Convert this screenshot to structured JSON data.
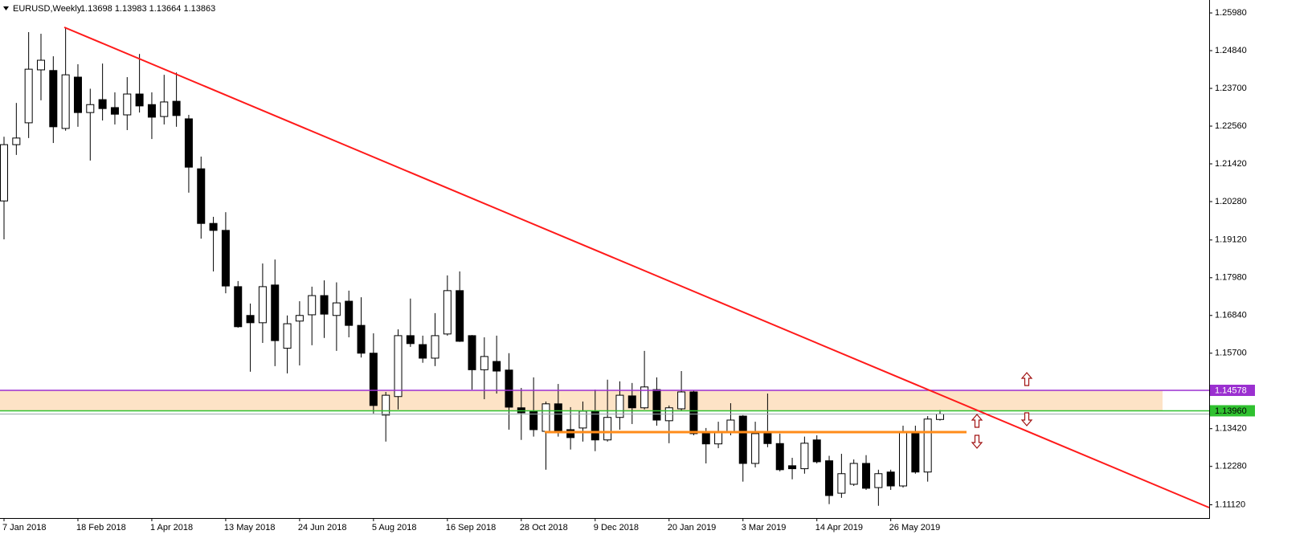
{
  "chart_data": {
    "type": "candlestick",
    "symbol": "EURUSD,Weekly",
    "quote": "1.13698 1.13983 1.13664 1.13863",
    "categories": [
      "7 Jan 2018",
      null,
      null,
      null,
      null,
      null,
      "18 Feb 2018",
      null,
      null,
      null,
      null,
      null,
      "1 Apr 2018",
      null,
      null,
      null,
      null,
      null,
      "13 May 2018",
      null,
      null,
      null,
      null,
      null,
      "24 Jun 2018",
      null,
      null,
      null,
      null,
      null,
      "5 Aug 2018",
      null,
      null,
      null,
      null,
      null,
      "16 Sep 2018",
      null,
      null,
      null,
      null,
      null,
      "28 Oct 2018",
      null,
      null,
      null,
      null,
      null,
      "9 Dec 2018",
      null,
      null,
      null,
      null,
      null,
      "20 Jan 2019",
      null,
      null,
      null,
      null,
      null,
      "3 Mar 2019",
      null,
      null,
      null,
      null,
      null,
      "14 Apr 2019",
      null,
      null,
      null,
      null,
      null,
      "26 May 2019",
      null,
      null,
      null,
      null
    ],
    "open": [
      1.203,
      1.22,
      1.2266,
      1.2426,
      1.2424,
      1.2249,
      1.2404,
      1.2297,
      1.2336,
      1.2312,
      1.229,
      1.2353,
      1.2321,
      1.2285,
      1.2331,
      1.2278,
      1.2127,
      1.1962,
      1.1941,
      1.1771,
      1.1684,
      1.1662,
      1.1776,
      1.1585,
      1.1667,
      1.1686,
      1.1744,
      1.1684,
      1.1727,
      1.1654,
      1.157,
      1.1383,
      1.1439,
      1.1623,
      1.1596,
      1.1555,
      1.1628,
      1.1759,
      1.1623,
      1.152,
      1.1545,
      1.1519,
      1.1405,
      1.1395,
      1.1334,
      1.1417,
      1.1339,
      1.1344,
      1.1395,
      1.1308,
      1.1376,
      1.1441,
      1.1405,
      1.146,
      1.1366,
      1.1402,
      1.1453,
      1.1327,
      1.1296,
      1.1332,
      1.138,
      1.1237,
      1.1327,
      1.1297,
      1.123,
      1.1221,
      1.1308,
      1.1245,
      1.1147,
      1.1174,
      1.1237,
      1.1164,
      1.1211,
      1.1169,
      1.1327,
      1.1211,
      1.13698
    ],
    "high": [
      1.2224,
      1.2326,
      1.254,
      1.2535,
      1.2467,
      1.2554,
      1.2443,
      1.2369,
      1.2445,
      1.2358,
      1.2404,
      1.2474,
      1.2358,
      1.2411,
      1.2418,
      1.229,
      1.2164,
      1.1982,
      1.1996,
      1.1788,
      1.172,
      1.1841,
      1.1853,
      1.1684,
      1.1727,
      1.1771,
      1.179,
      1.1784,
      1.1759,
      1.1739,
      1.163,
      1.1453,
      1.1642,
      1.1735,
      1.1623,
      1.1691,
      1.1805,
      1.1817,
      1.1625,
      1.1618,
      1.1623,
      1.157,
      1.1465,
      1.1497,
      1.1424,
      1.1477,
      1.1407,
      1.1424,
      1.146,
      1.149,
      1.1485,
      1.148,
      1.1577,
      1.1497,
      1.1412,
      1.1516,
      1.1458,
      1.1344,
      1.1363,
      1.1419,
      1.1383,
      1.1363,
      1.1448,
      1.1327,
      1.1254,
      1.1318,
      1.1322,
      1.126,
      1.1266,
      1.1249,
      1.1262,
      1.1218,
      1.1218,
      1.1351,
      1.1351,
      1.138,
      1.13983
    ],
    "low": [
      1.1914,
      1.2169,
      1.222,
      1.2334,
      1.2205,
      1.2242,
      1.2254,
      1.2152,
      1.2273,
      1.2261,
      1.2244,
      1.2297,
      1.2217,
      1.2261,
      1.2254,
      1.2055,
      1.1916,
      1.1817,
      1.1751,
      1.1647,
      1.1514,
      1.1601,
      1.1531,
      1.1509,
      1.1533,
      1.1594,
      1.1616,
      1.1577,
      1.1618,
      1.1557,
      1.1388,
      1.1303,
      1.14,
      1.1589,
      1.1541,
      1.1531,
      1.1623,
      1.1604,
      1.146,
      1.1431,
      1.1448,
      1.1339,
      1.1308,
      1.1318,
      1.1218,
      1.1318,
      1.1279,
      1.1303,
      1.1274,
      1.1303,
      1.1339,
      1.1356,
      1.14,
      1.1351,
      1.1298,
      1.1395,
      1.1322,
      1.1237,
      1.1283,
      1.1322,
      1.1182,
      1.1225,
      1.1286,
      1.1213,
      1.1189,
      1.1206,
      1.1237,
      1.1114,
      1.1133,
      1.1169,
      1.1157,
      1.1109,
      1.1157,
      1.1164,
      1.1206,
      1.1182,
      1.13664
    ],
    "close": [
      1.22,
      1.222,
      1.2428,
      1.2455,
      1.2254,
      1.2411,
      1.2297,
      1.2321,
      1.2309,
      1.2292,
      1.2353,
      1.2317,
      1.2283,
      1.2329,
      1.2288,
      1.2132,
      1.1962,
      1.1941,
      1.1773,
      1.165,
      1.1662,
      1.1771,
      1.1608,
      1.1659,
      1.1684,
      1.1744,
      1.1688,
      1.1722,
      1.1654,
      1.157,
      1.1412,
      1.1443,
      1.1623,
      1.1599,
      1.1555,
      1.1623,
      1.1759,
      1.1606,
      1.152,
      1.156,
      1.1516,
      1.1407,
      1.139,
      1.1339,
      1.1417,
      1.1334,
      1.1315,
      1.1395,
      1.1308,
      1.1376,
      1.1443,
      1.1405,
      1.1468,
      1.1368,
      1.1405,
      1.1453,
      1.1327,
      1.1296,
      1.1332,
      1.1368,
      1.1237,
      1.1327,
      1.1297,
      1.1218,
      1.1221,
      1.1298,
      1.1242,
      1.114,
      1.1206,
      1.1237,
      1.1162,
      1.1206,
      1.1169,
      1.1332,
      1.1211,
      1.1371,
      1.13863
    ],
    "up_color": "#ffffff",
    "down_color": "#000000",
    "ylim": [
      1.1072,
      1.2637
    ],
    "yticks": [
      {
        "value": 1.2598,
        "label": "1.25980"
      },
      {
        "value": 1.2484,
        "label": "1.24840"
      },
      {
        "value": 1.237,
        "label": "1.23700"
      },
      {
        "value": 1.2256,
        "label": "1.22560"
      },
      {
        "value": 1.2142,
        "label": "1.21420"
      },
      {
        "value": 1.2028,
        "label": "1.20280"
      },
      {
        "value": 1.1912,
        "label": "1.19120"
      },
      {
        "value": 1.1798,
        "label": "1.17980"
      },
      {
        "value": 1.1684,
        "label": "1.16840"
      },
      {
        "value": 1.157,
        "label": "1.15700"
      },
      {
        "value": 1.1342,
        "label": "1.13420"
      },
      {
        "value": 1.1228,
        "label": "1.12280"
      },
      {
        "value": 1.1112,
        "label": "1.11120"
      }
    ],
    "levels": [
      {
        "value": 1.14578,
        "color": "#9b30d0",
        "text_color": "#ffffff"
      },
      {
        "value": 1.1396,
        "label": "1.13960",
        "color": "#2fc12f",
        "text_color": "#000000"
      }
    ],
    "zone_color": "#fde3c6"
  }
}
